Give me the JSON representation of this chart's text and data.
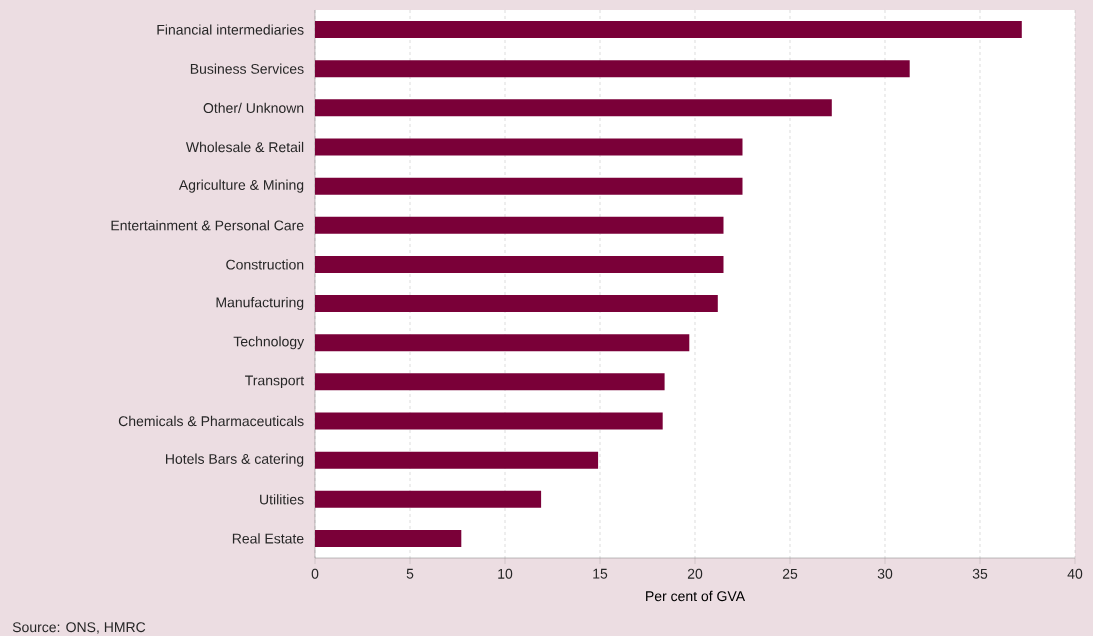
{
  "chart_data": {
    "type": "bar",
    "orientation": "horizontal",
    "categories": [
      "Financial intermediaries",
      "Business Services",
      "Other/ Unknown",
      "Wholesale & Retail",
      "Agriculture & Mining",
      "Entertainment & Personal Care",
      "Construction",
      "Manufacturing",
      "Technology",
      "Transport",
      "Chemicals & Pharmaceuticals",
      "Hotels Bars & catering",
      "Utilities",
      "Real Estate"
    ],
    "values": [
      37.2,
      31.3,
      27.2,
      22.5,
      22.5,
      21.5,
      21.5,
      21.2,
      19.7,
      18.4,
      18.3,
      14.9,
      11.9,
      7.7
    ],
    "color": "#7a0038",
    "xlim": [
      0,
      40
    ],
    "xticks": [
      0,
      5,
      10,
      15,
      20,
      25,
      30,
      35,
      40
    ],
    "xlabel": "Per cent of GVA",
    "grid": "x",
    "annotations": [
      "Source: ONS, HMRC"
    ]
  }
}
